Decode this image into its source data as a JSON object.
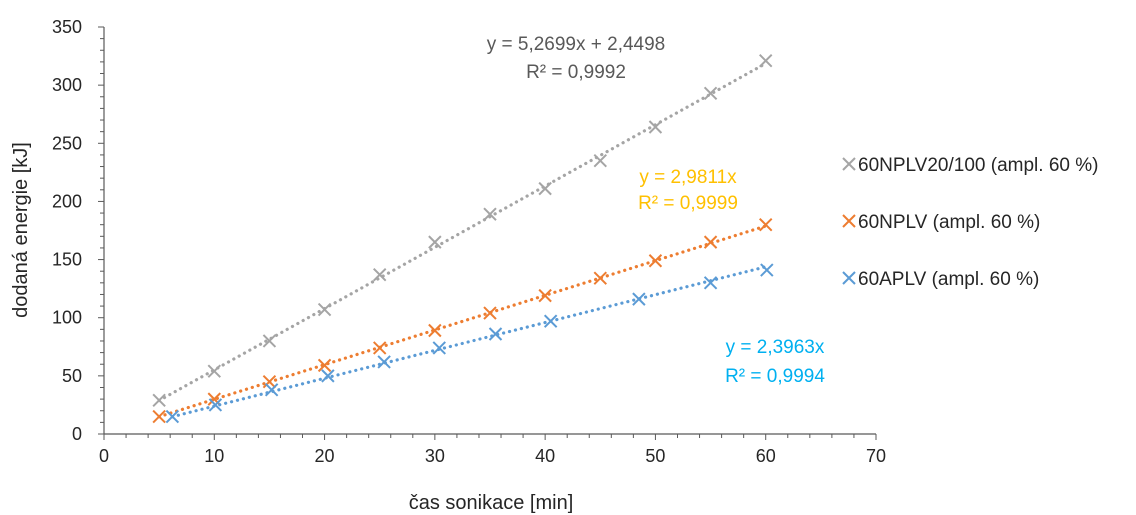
{
  "chart_data": {
    "type": "scatter",
    "title": "",
    "xlabel": "čas sonikace [min]",
    "ylabel": "dodaná energie [kJ]",
    "xlim": [
      0,
      70
    ],
    "ylim": [
      0,
      350
    ],
    "x_ticks": [
      0,
      10,
      20,
      30,
      40,
      50,
      60,
      70
    ],
    "y_ticks": [
      0,
      50,
      100,
      150,
      200,
      250,
      300,
      350
    ],
    "grid": false,
    "legend_position": "right",
    "series": [
      {
        "name": "60NPLV20/100 (ampl. 60 %)",
        "color": "#a5a5a5",
        "label_color": "#595959",
        "marker": "x",
        "trendline": "linear",
        "equation": "y = 5,2699x + 2,4498",
        "r2": "R² = 0,9992",
        "slope": 5.2699,
        "intercept": 2.4498,
        "x": [
          5,
          10,
          15,
          20,
          25,
          30,
          35,
          40,
          45,
          50,
          55,
          60
        ],
        "y": [
          29,
          54,
          80,
          107,
          137,
          165,
          189,
          211,
          235,
          264,
          293,
          321
        ]
      },
      {
        "name": "60NPLV (ampl. 60 %)",
        "color": "#ed7d31",
        "label_color": "#ffc000",
        "marker": "x",
        "trendline": "linear",
        "equation": "y = 2,9811x",
        "r2": "R² = 0,9999",
        "slope": 2.9811,
        "intercept": 0,
        "x": [
          5,
          10,
          15,
          20,
          25,
          30,
          35,
          40,
          45,
          50,
          55,
          60
        ],
        "y": [
          15,
          30,
          45,
          59,
          74,
          89,
          104,
          119,
          134,
          149,
          165,
          180
        ]
      },
      {
        "name": "60APLV (ampl. 60 %)",
        "color": "#5b9bd5",
        "label_color": "#00b0f0",
        "marker": "x",
        "trendline": "linear",
        "equation": "y = 2,3963x",
        "r2": "R² = 0,9994",
        "slope": 2.3963,
        "intercept": 0,
        "x": [
          6.2,
          10.1,
          15.2,
          20.3,
          25.4,
          30.4,
          35.5,
          40.5,
          48.5,
          55,
          60.1
        ],
        "y": [
          15,
          25,
          38,
          50,
          62,
          74,
          86,
          97,
          116,
          130,
          141
        ]
      }
    ]
  }
}
